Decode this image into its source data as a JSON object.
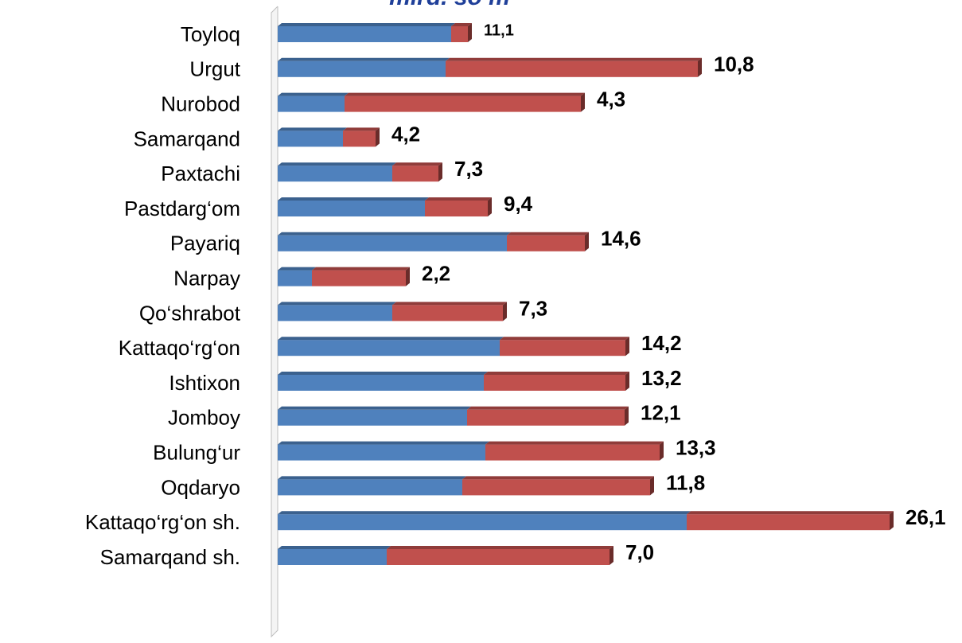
{
  "chart_data": {
    "type": "stacked_bar_horizontal",
    "title": "mlrd. so‘m",
    "categories": [
      "Toyloq",
      "Urgut",
      "Nurobod",
      "Samarqand",
      "Paxtachi",
      "Pastdarg‘om",
      "Payariq",
      "Narpay",
      "Qo‘shrabot",
      "Kattaqo‘rg‘on",
      "Ishtixon",
      "Jomboy",
      "Bulung‘ur",
      "Oqdaryo",
      "Kattaqo‘rg‘on  sh.",
      "Samarqand sh."
    ],
    "series": [
      {
        "color": "#4f81bd",
        "values": [
          21.8,
          21.1,
          8.4,
          8.2,
          14.4,
          18.5,
          28.8,
          4.3,
          14.4,
          27.9,
          25.9,
          23.8,
          26.1,
          23.2,
          51.4,
          13.7
        ]
      },
      {
        "color": "#c0504d",
        "values": [
          2.1,
          31.7,
          29.7,
          4.1,
          5.8,
          7.9,
          9.8,
          11.8,
          13.9,
          15.8,
          17.8,
          19.8,
          21.9,
          23.6,
          25.5,
          28.0
        ]
      }
    ],
    "data_labels": [
      "11,1",
      "10,8",
      "4,3",
      "4,2",
      "7,3",
      "9,4",
      "14,6",
      "2,2",
      "7,3",
      "14,2",
      "13,2",
      "12,1",
      "13,3",
      "11,8",
      "26,1",
      "7,0"
    ],
    "xlim": [
      0,
      80
    ]
  }
}
